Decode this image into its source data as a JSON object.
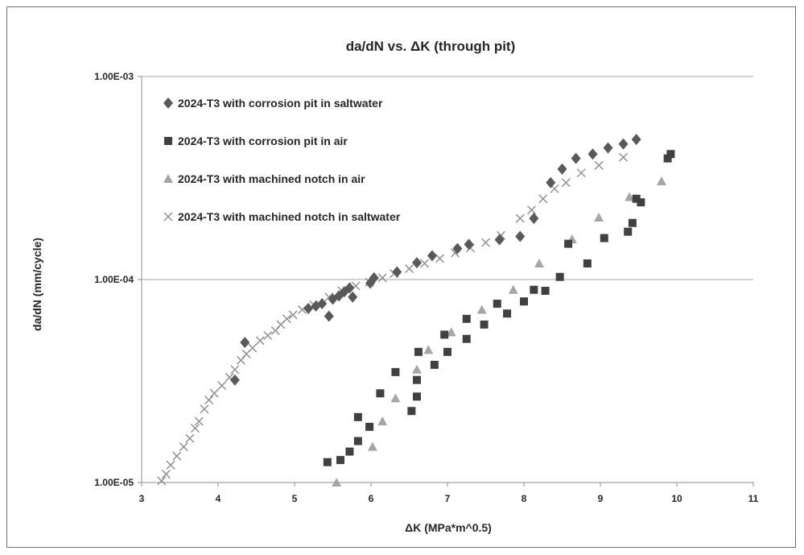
{
  "chart_data": {
    "type": "scatter",
    "title": "da/dN vs. ΔK (through pit)",
    "xlabel": "ΔK (MPa*m^0.5)",
    "ylabel": "da/dN (mm/cycle)",
    "xlim": [
      3,
      11
    ],
    "ylim": [
      1e-05,
      0.001
    ],
    "yscale": "log",
    "x_ticks": [
      "3",
      "4",
      "5",
      "6",
      "7",
      "8",
      "9",
      "10",
      "11"
    ],
    "y_ticks": [
      "1.00E-05",
      "1.00E-04",
      "1.00E-03"
    ],
    "grid": "horizontal major gridlines",
    "legend_position": "top-left",
    "series": [
      {
        "name": "2024-T3 with corrosion pit in saltwater",
        "marker": "diamond",
        "color": "#595959",
        "points": [
          [
            4.22,
            3.2e-05
          ],
          [
            4.35,
            4.9e-05
          ],
          [
            5.18,
            7.2e-05
          ],
          [
            5.28,
            7.4e-05
          ],
          [
            5.36,
            7.6e-05
          ],
          [
            5.45,
            6.6e-05
          ],
          [
            5.5,
            8e-05
          ],
          [
            5.58,
            8.3e-05
          ],
          [
            5.65,
            8.7e-05
          ],
          [
            5.72,
            9.1e-05
          ],
          [
            5.76,
            8.2e-05
          ],
          [
            5.99,
            9.6e-05
          ],
          [
            6.04,
            0.000102
          ],
          [
            6.34,
            0.000109
          ],
          [
            6.6,
            0.000121
          ],
          [
            6.8,
            0.000131
          ],
          [
            7.13,
            0.000142
          ],
          [
            7.28,
            0.000149
          ],
          [
            7.68,
            0.000157
          ],
          [
            7.95,
            0.000163
          ],
          [
            8.13,
            0.0002
          ],
          [
            8.35,
            0.0003
          ],
          [
            8.5,
            0.00035
          ],
          [
            8.68,
            0.000395
          ],
          [
            8.9,
            0.000415
          ],
          [
            9.1,
            0.000445
          ],
          [
            9.3,
            0.000465
          ],
          [
            9.47,
            0.00049
          ]
        ]
      },
      {
        "name": "2024-T3 with corrosion pit in air",
        "marker": "square",
        "color": "#404040",
        "points": [
          [
            5.43,
            1.26e-05
          ],
          [
            5.6,
            1.29e-05
          ],
          [
            5.72,
            1.42e-05
          ],
          [
            5.83,
            1.6e-05
          ],
          [
            5.83,
            2.1e-05
          ],
          [
            5.98,
            1.88e-05
          ],
          [
            6.12,
            2.75e-05
          ],
          [
            6.32,
            3.5e-05
          ],
          [
            6.53,
            2.25e-05
          ],
          [
            6.6,
            2.65e-05
          ],
          [
            6.6,
            3.2e-05
          ],
          [
            6.62,
            4.4e-05
          ],
          [
            6.83,
            3.8e-05
          ],
          [
            6.96,
            5.35e-05
          ],
          [
            7.0,
            4.4e-05
          ],
          [
            7.25,
            5.1e-05
          ],
          [
            7.25,
            6.4e-05
          ],
          [
            7.48,
            6e-05
          ],
          [
            7.65,
            7.6e-05
          ],
          [
            7.78,
            6.8e-05
          ],
          [
            8.0,
            7.8e-05
          ],
          [
            8.13,
            8.9e-05
          ],
          [
            8.28,
            8.8e-05
          ],
          [
            8.47,
            0.000103
          ],
          [
            8.83,
            0.00012
          ],
          [
            9.05,
            0.00016
          ],
          [
            9.36,
            0.000172
          ],
          [
            9.42,
            0.00019
          ],
          [
            9.47,
            0.00025
          ],
          [
            9.53,
            0.00024
          ],
          [
            9.88,
            0.000395
          ],
          [
            9.92,
            0.000415
          ],
          [
            8.58,
            0.00015
          ]
        ]
      },
      {
        "name": "2024-T3 with machined notch in air",
        "marker": "triangle",
        "color": "#a6a6a6",
        "points": [
          [
            5.55,
            1e-05
          ],
          [
            6.02,
            1.5e-05
          ],
          [
            6.15,
            2e-05
          ],
          [
            6.32,
            2.6e-05
          ],
          [
            6.6,
            3.6e-05
          ],
          [
            6.75,
            4.5e-05
          ],
          [
            7.05,
            5.5e-05
          ],
          [
            7.45,
            7.1e-05
          ],
          [
            7.86,
            8.9e-05
          ],
          [
            8.2,
            0.00012
          ],
          [
            8.63,
            0.000158
          ],
          [
            8.98,
            0.000202
          ],
          [
            9.38,
            0.000255
          ],
          [
            9.8,
            0.000305
          ]
        ]
      },
      {
        "name": "2024-T3 with machined notch in saltwater",
        "marker": "x",
        "color": "#8c8c8c",
        "points": [
          [
            3.26,
            1.02e-05
          ],
          [
            3.32,
            1.1e-05
          ],
          [
            3.38,
            1.22e-05
          ],
          [
            3.46,
            1.35e-05
          ],
          [
            3.55,
            1.5e-05
          ],
          [
            3.63,
            1.65e-05
          ],
          [
            3.7,
            1.85e-05
          ],
          [
            3.75,
            2e-05
          ],
          [
            3.82,
            2.3e-05
          ],
          [
            3.88,
            2.55e-05
          ],
          [
            3.95,
            2.75e-05
          ],
          [
            4.05,
            3e-05
          ],
          [
            4.15,
            3.3e-05
          ],
          [
            4.22,
            3.6e-05
          ],
          [
            4.3,
            4e-05
          ],
          [
            4.37,
            4.3e-05
          ],
          [
            4.45,
            4.6e-05
          ],
          [
            4.55,
            5e-05
          ],
          [
            4.65,
            5.3e-05
          ],
          [
            4.75,
            5.6e-05
          ],
          [
            4.82,
            6e-05
          ],
          [
            4.9,
            6.4e-05
          ],
          [
            4.98,
            6.7e-05
          ],
          [
            5.1,
            7.1e-05
          ],
          [
            5.25,
            7.5e-05
          ],
          [
            5.45,
            8.2e-05
          ],
          [
            5.62,
            8.8e-05
          ],
          [
            5.8,
            9.3e-05
          ],
          [
            5.98,
            9.7e-05
          ],
          [
            6.15,
            0.000102
          ],
          [
            6.3,
            0.000107
          ],
          [
            6.5,
            0.000113
          ],
          [
            6.7,
            0.00012
          ],
          [
            6.9,
            0.000127
          ],
          [
            7.1,
            0.000135
          ],
          [
            7.3,
            0.000143
          ],
          [
            7.5,
            0.000152
          ],
          [
            7.7,
            0.000165
          ],
          [
            7.95,
            0.0002
          ],
          [
            8.1,
            0.00022
          ],
          [
            8.25,
            0.00025
          ],
          [
            8.4,
            0.00028
          ],
          [
            8.55,
            0.0003
          ],
          [
            8.75,
            0.000335
          ],
          [
            8.98,
            0.000365
          ],
          [
            9.3,
            0.0004
          ]
        ]
      }
    ]
  }
}
